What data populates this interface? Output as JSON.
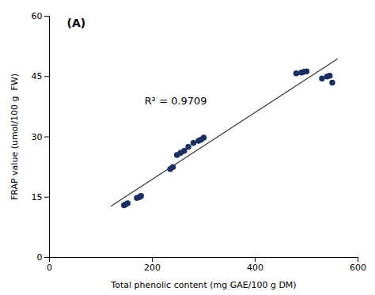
{
  "chart_data": {
    "type": "scatter",
    "x": [
      145,
      148,
      152,
      170,
      175,
      178,
      235,
      240,
      248,
      255,
      262,
      270,
      280,
      290,
      295,
      300,
      480,
      490,
      495,
      500,
      530,
      540,
      545,
      550
    ],
    "values": [
      13.0,
      13.2,
      13.5,
      14.8,
      15.0,
      15.3,
      22.0,
      22.5,
      25.5,
      26.0,
      26.5,
      27.5,
      28.5,
      29.0,
      29.3,
      29.8,
      45.8,
      46.0,
      46.2,
      46.3,
      44.5,
      45.0,
      45.2,
      43.5
    ],
    "color": "#1a3060",
    "marker": "circle",
    "trend_line": {
      "type": "line",
      "x": [
        120,
        560
      ],
      "values": [
        12.791,
        49.3827
      ],
      "color": "#333333",
      "line_style": "solid"
    },
    "annotations": [
      {
        "text": "R² = 0.9709",
        "x": 185,
        "y": 38
      },
      {
        "text": "(A)"
      }
    ],
    "xlabel": "Total phenolic content (mg GAE/100 g DM)",
    "ylabel": "FRAP value (umol/100 g  FW)",
    "xlim": [
      0,
      600
    ],
    "ylim": [
      0,
      60
    ],
    "xticks": [
      0,
      200,
      400,
      600
    ],
    "yticks": [
      0,
      15,
      30,
      45,
      60
    ],
    "grid": false
  }
}
